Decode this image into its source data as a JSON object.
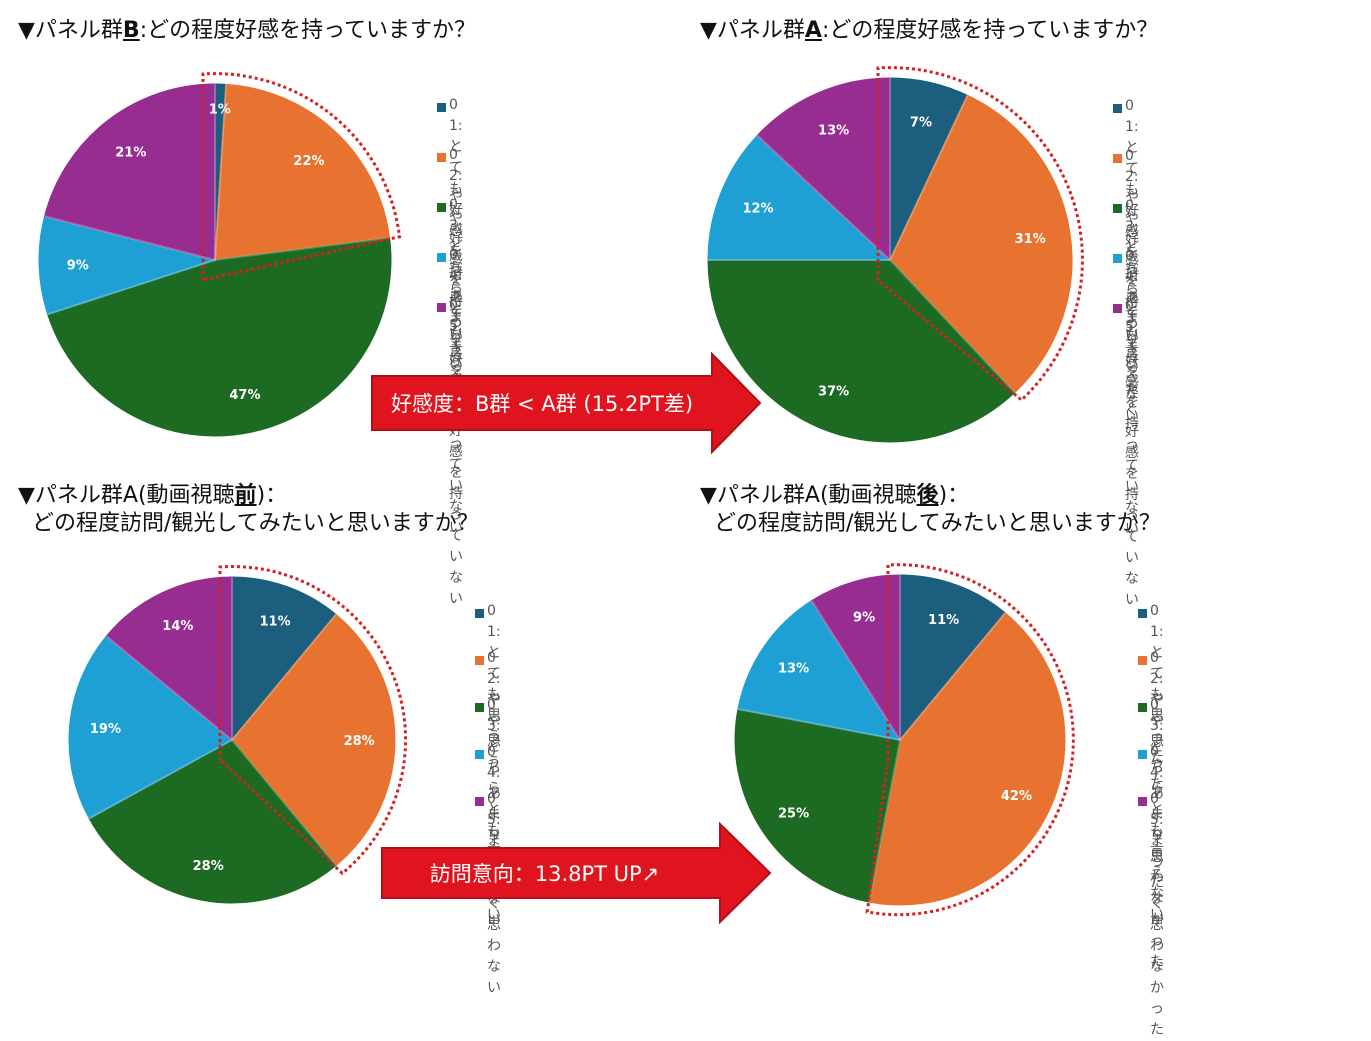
{
  "chart_data": [
    {
      "type": "pie",
      "title_prefix": "▼パネル群",
      "title_group": "B",
      "title_suffix": ":どの程度好感を持っていますか？",
      "categories": [
        "01:とても好感を持っている",
        "02:やや好感を持っている",
        "03:どちらとも言えない",
        "04:あまり好感を持っていない",
        "05:まったく好感を持っていない"
      ],
      "values": [
        1,
        22,
        47,
        9,
        21
      ],
      "labels": [
        "1%",
        "22%",
        "47%",
        "9%",
        "21%"
      ],
      "highlight": [
        0,
        1
      ]
    },
    {
      "type": "pie",
      "title_prefix": "▼パネル群",
      "title_group": "A",
      "title_suffix": ":どの程度好感を持っていますか？",
      "categories": [
        "01:とても好感を持っている",
        "02:やや好感を持っている",
        "03:どちらとも言えない",
        "04:あまり好感を持っていない",
        "05:まったく好感を持っていない"
      ],
      "values": [
        7,
        31,
        37,
        12,
        13
      ],
      "labels": [
        "7%",
        "31%",
        "37%",
        "12%",
        "13%"
      ],
      "highlight": [
        0,
        1
      ]
    },
    {
      "type": "pie",
      "title_prefix": "▼パネル群A(動画視聴",
      "title_group": "前",
      "title_suffix": ")：",
      "title_line2": "どの程度訪問/観光してみたいと思いますか？",
      "categories": [
        "01:とても思う",
        "02:やや思う",
        "03:どちらとも言えない",
        "04:あまり思わない",
        "05:まったく思わない"
      ],
      "values": [
        11,
        28,
        28,
        19,
        14
      ],
      "labels": [
        "11%",
        "28%",
        "28%",
        "19%",
        "14%"
      ],
      "highlight": [
        0,
        1
      ]
    },
    {
      "type": "pie",
      "title_prefix": "▼パネル群A(動画視聴",
      "title_group": "後",
      "title_suffix": ")：",
      "title_line2": "どの程度訪問/観光してみたいと思いますか？",
      "categories": [
        "01:とても思った",
        "02:やや思った",
        "03:どちらとも言えない",
        "04:あまり思わなかった",
        "05:まったく思わなかった"
      ],
      "values": [
        11,
        42,
        25,
        13,
        9
      ],
      "labels": [
        "11%",
        "42%",
        "25%",
        "13%",
        "9%"
      ],
      "highlight": [
        0,
        1
      ]
    }
  ],
  "colors": [
    "#1b5e7e",
    "#e87330",
    "#1d6b23",
    "#1fa0d4",
    "#982d91"
  ],
  "annotations": {
    "favorability": "好感度：B群 < A群 (15.2PT差)",
    "visit_intent": "訪問意向：13.8PT UP↗"
  },
  "highlight_color": "#d62020",
  "arrow_color": "#e0141f"
}
